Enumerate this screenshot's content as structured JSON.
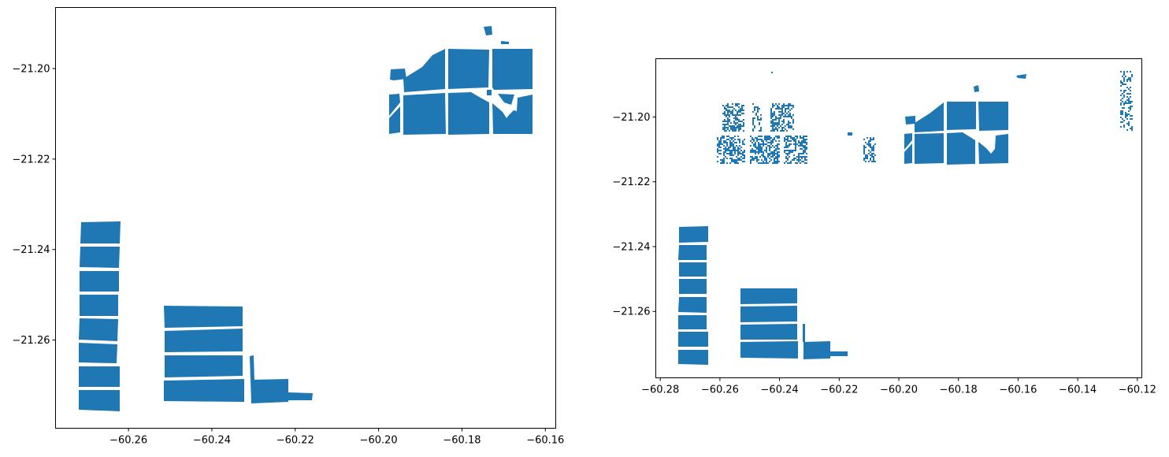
{
  "figure": {
    "fill_color": "#1f77b4",
    "background": "#ffffff"
  },
  "chart_data": [
    {
      "type": "map",
      "panel": "left",
      "xlim": [
        -60.2775,
        -60.1575
      ],
      "ylim": [
        -21.2795,
        -21.1865
      ],
      "x_ticks": [
        -60.26,
        -60.24,
        -60.22,
        -60.2,
        -60.18,
        -60.16
      ],
      "x_tick_labels": [
        "−60.26",
        "−60.24",
        "−60.22",
        "−60.20",
        "−60.18",
        "−60.16"
      ],
      "y_ticks": [
        -21.2,
        -21.22,
        -21.24,
        -21.26
      ],
      "y_tick_labels": [
        "−21.20",
        "−21.22",
        "−21.24",
        "−21.26"
      ],
      "grid": false,
      "legend": "none",
      "title": "",
      "xlabel": "",
      "ylabel": ""
    },
    {
      "type": "map",
      "panel": "right",
      "xlim": [
        -60.2815,
        -60.1185
      ],
      "ylim": [
        -21.2805,
        -21.182
      ],
      "x_ticks": [
        -60.28,
        -60.26,
        -60.24,
        -60.22,
        -60.2,
        -60.18,
        -60.16,
        -60.14,
        -60.12
      ],
      "x_tick_labels": [
        "−60.28",
        "−60.26",
        "−60.24",
        "−60.22",
        "−60.20",
        "−60.18",
        "−60.16",
        "−60.14",
        "−60.12"
      ],
      "y_ticks": [
        -21.2,
        -21.22,
        -21.24,
        -21.26
      ],
      "y_tick_labels": [
        "−21.20",
        "−21.22",
        "−21.24",
        "−21.26"
      ],
      "grid": false,
      "legend": "none",
      "title": "",
      "xlabel": "",
      "ylabel": ""
    }
  ]
}
